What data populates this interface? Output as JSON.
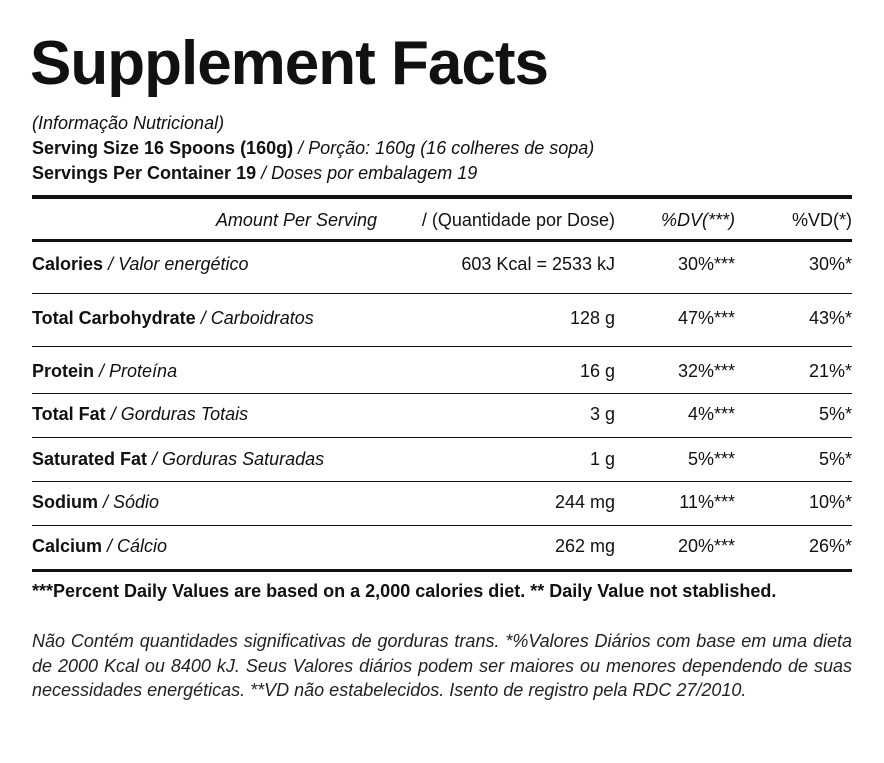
{
  "header": {
    "title": "Supplement Facts",
    "subtitle": "(Informação Nutricional)",
    "serving_size": {
      "en": "Serving Size 16 Spoons (160g)",
      "pt": "/ Porção: 160g (16 colheres de sopa)"
    },
    "servings_per_container": {
      "en": "Servings Per Container 19",
      "pt": "/ Doses por embalagem 19"
    }
  },
  "table": {
    "header": [
      "Amount Per Serving",
      "/ (Quantidade por Dose)",
      "%DV(***)",
      "%VD(*)"
    ],
    "rows": [
      [
        "Calories",
        "/ Valor energético",
        "603 Kcal = 2533 kJ",
        "30%***",
        "30%*"
      ],
      [
        "Total Carbohydrate",
        "/ Carboidratos",
        "128 g",
        "47%***",
        "43%*"
      ],
      [
        "Protein",
        "/ Proteína",
        "16 g",
        "32%***",
        "21%*"
      ],
      [
        "Total Fat",
        "/ Gorduras Totais",
        "3 g",
        "4%***",
        "5%*"
      ],
      [
        "Saturated Fat",
        "/ Gorduras Saturadas",
        "1 g",
        "5%***",
        "5%*"
      ],
      [
        "Sodium",
        "/ Sódio",
        "244 mg",
        "11%***",
        "10%*"
      ],
      [
        "Calcium",
        "/ Cálcio",
        "262 mg",
        "20%***",
        "26%*"
      ]
    ]
  },
  "footer": {
    "bold": "***Percent Daily Values are based on a 2,000 calories diet. ** Daily Value not stablished.",
    "italic": "Não Contém quantidades significativas de gorduras trans. *%Valores Diários com base em uma dieta de 2000 Kcal ou 8400 kJ. Seus Valores diários podem ser maiores ou menores dependendo de suas necessidades energéticas. **VD não estabelecidos. Isento de registro pela RDC 27/2010."
  }
}
